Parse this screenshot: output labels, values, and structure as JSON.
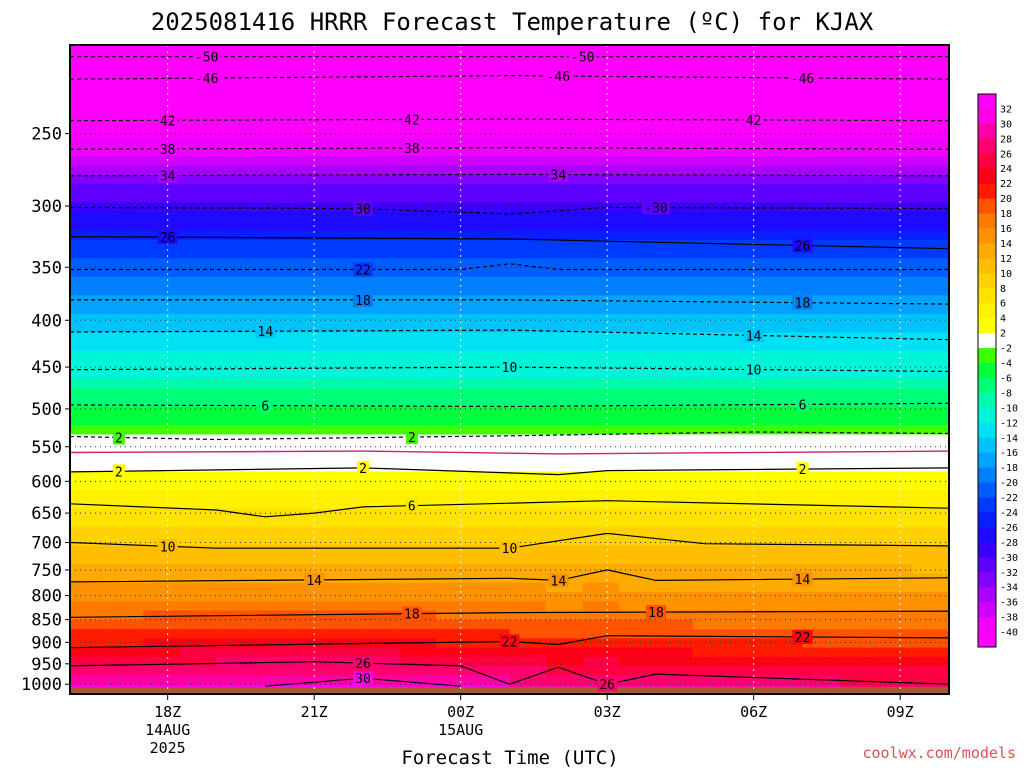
{
  "chart_data": {
    "type": "heatmap",
    "title": "2025081416 HRRR Forecast Temperature (ºC) for KJAX",
    "xlabel": "Forecast Time (UTC)",
    "ylabel": "",
    "x_unit": "hours since 2025-08-14 16Z",
    "xlim": [
      0,
      18
    ],
    "x_ticks": [
      {
        "x": 2,
        "label": "18Z",
        "sub1": "14AUG",
        "sub2": "2025"
      },
      {
        "x": 5,
        "label": "21Z",
        "sub1": "",
        "sub2": ""
      },
      {
        "x": 8,
        "label": "00Z",
        "sub1": "15AUG",
        "sub2": ""
      },
      {
        "x": 11,
        "label": "03Z",
        "sub1": "",
        "sub2": ""
      },
      {
        "x": 14,
        "label": "06Z",
        "sub1": "",
        "sub2": ""
      },
      {
        "x": 17,
        "label": "09Z",
        "sub1": "",
        "sub2": ""
      }
    ],
    "y_scale": "log",
    "y_reversed": true,
    "ylim": [
      1025,
      200
    ],
    "y_ticks": [
      {
        "p": 250,
        "label": "250"
      },
      {
        "p": 300,
        "label": "300"
      },
      {
        "p": 350,
        "label": "350"
      },
      {
        "p": 400,
        "label": "400"
      },
      {
        "p": 450,
        "label": "450"
      },
      {
        "p": 500,
        "label": "500"
      },
      {
        "p": 550,
        "label": "550"
      },
      {
        "p": 600,
        "label": "600"
      },
      {
        "p": 650,
        "label": "650"
      },
      {
        "p": 700,
        "label": "700"
      },
      {
        "p": 750,
        "label": "750"
      },
      {
        "p": 800,
        "label": "800"
      },
      {
        "p": 850,
        "label": "850"
      },
      {
        "p": 900,
        "label": "900"
      },
      {
        "p": 950,
        "label": "950"
      },
      {
        "p": 1000,
        "label": "1000"
      }
    ],
    "levels_hpa": [
      1005,
      1000,
      950,
      900,
      850,
      800,
      750,
      700,
      650,
      600,
      550,
      500,
      450,
      400,
      350,
      300,
      250,
      200
    ],
    "temperature_profile_c": [
      30,
      28.5,
      25,
      21,
      18,
      15,
      12.5,
      9.5,
      6.5,
      3,
      0,
      -6,
      -11,
      -15,
      -21,
      -29,
      -41,
      -53
    ],
    "times_h": [
      0,
      2,
      4,
      6,
      8,
      9,
      10,
      11,
      12,
      14,
      16,
      18
    ],
    "surface_diurnal_offsets_c": [
      0.5,
      1.5,
      2,
      2,
      1,
      0.5,
      -1,
      -0.5,
      -1,
      -1.5,
      -2,
      -2.5
    ],
    "contours": [
      {
        "value": -50,
        "style": "dashed",
        "x": [
          0,
          9,
          18
        ],
        "p": [
          206,
          206,
          206
        ],
        "labels": [
          {
            "x": 2.8,
            "text": "-50"
          },
          {
            "x": 10.5,
            "text": "-50"
          }
        ]
      },
      {
        "value": -46,
        "style": "dashed",
        "x": [
          0,
          9,
          18
        ],
        "p": [
          218,
          216,
          218
        ],
        "labels": [
          {
            "x": 2.8,
            "text": "-46"
          },
          {
            "x": 10,
            "text": "-46"
          },
          {
            "x": 15,
            "text": "-46"
          }
        ]
      },
      {
        "value": -42,
        "style": "dashed",
        "x": [
          0,
          9,
          18
        ],
        "p": [
          242,
          241,
          242
        ],
        "labels": [
          {
            "x": 2,
            "text": "42"
          },
          {
            "x": 7,
            "text": "42"
          },
          {
            "x": 14,
            "text": "42"
          }
        ]
      },
      {
        "value": -38,
        "style": "dashed",
        "x": [
          0,
          9,
          18
        ],
        "p": [
          260,
          259,
          260
        ],
        "labels": [
          {
            "x": 2,
            "text": "38"
          },
          {
            "x": 7,
            "text": "38"
          }
        ]
      },
      {
        "value": -34,
        "style": "dashed",
        "x": [
          0,
          9,
          18
        ],
        "p": [
          278,
          277,
          278
        ],
        "labels": [
          {
            "x": 2,
            "text": "34"
          },
          {
            "x": 10,
            "text": "34"
          }
        ]
      },
      {
        "value": -30,
        "style": "dashed",
        "x": [
          0,
          6,
          9,
          11,
          18
        ],
        "p": [
          301,
          302,
          306,
          301,
          302
        ],
        "labels": [
          {
            "x": 6,
            "text": "30"
          },
          {
            "x": 12,
            "text": "-30"
          }
        ]
      },
      {
        "value": -26,
        "style": "solid",
        "x": [
          0,
          9,
          18
        ],
        "p": [
          324,
          326,
          334
        ],
        "labels": [
          {
            "x": 2,
            "text": "26"
          },
          {
            "x": 15,
            "text": "26"
          }
        ]
      },
      {
        "value": -22,
        "style": "dashed",
        "x": [
          0,
          8,
          9,
          10,
          18
        ],
        "p": [
          352,
          352,
          347,
          352,
          352
        ],
        "labels": [
          {
            "x": 6,
            "text": "22"
          }
        ]
      },
      {
        "value": -18,
        "style": "dashed",
        "x": [
          0,
          9,
          18
        ],
        "p": [
          380,
          380,
          384
        ],
        "labels": [
          {
            "x": 6,
            "text": "18"
          },
          {
            "x": 15,
            "text": "18"
          }
        ]
      },
      {
        "value": -14,
        "style": "dashed",
        "x": [
          0,
          9,
          18
        ],
        "p": [
          412,
          410,
          420
        ],
        "labels": [
          {
            "x": 4,
            "text": "14"
          },
          {
            "x": 14,
            "text": "14"
          }
        ]
      },
      {
        "value": -10,
        "style": "dashed",
        "x": [
          0,
          9,
          18
        ],
        "p": [
          453,
          450,
          455
        ],
        "labels": [
          {
            "x": 9,
            "text": "10"
          },
          {
            "x": 14,
            "text": "10"
          }
        ]
      },
      {
        "value": -6,
        "style": "dashed",
        "x": [
          0,
          9,
          18
        ],
        "p": [
          495,
          497,
          493
        ],
        "labels": [
          {
            "x": 4,
            "text": "6"
          },
          {
            "x": 15,
            "text": "6"
          }
        ]
      },
      {
        "value": -2,
        "style": "dashed",
        "x": [
          0,
          3,
          9,
          14,
          18
        ],
        "p": [
          536,
          540,
          535,
          530,
          532
        ],
        "labels": [
          {
            "x": 1,
            "text": "2"
          },
          {
            "x": 7,
            "text": "2"
          }
        ]
      },
      {
        "value": 0,
        "style": "magenta",
        "x": [
          0,
          6,
          10,
          18
        ],
        "p": [
          558,
          556,
          560,
          556
        ],
        "labels": []
      },
      {
        "value": 2,
        "style": "solid",
        "x": [
          0,
          6,
          10,
          11,
          18
        ],
        "p": [
          586,
          580,
          590,
          584,
          580
        ],
        "labels": [
          {
            "x": 1,
            "text": "2"
          },
          {
            "x": 6,
            "text": "2"
          },
          {
            "x": 15,
            "text": "2"
          }
        ]
      },
      {
        "value": 6,
        "style": "solid",
        "x": [
          0,
          3,
          4,
          5,
          6,
          11,
          18
        ],
        "p": [
          635,
          645,
          656,
          650,
          640,
          630,
          642
        ],
        "labels": [
          {
            "x": 7,
            "text": "6"
          }
        ]
      },
      {
        "value": 10,
        "style": "solid",
        "x": [
          0,
          3,
          9,
          11,
          13,
          18
        ],
        "p": [
          700,
          710,
          710,
          684,
          702,
          706
        ],
        "labels": [
          {
            "x": 2,
            "text": "10"
          },
          {
            "x": 9,
            "text": "10"
          }
        ]
      },
      {
        "value": 14,
        "style": "solid",
        "x": [
          0,
          9,
          10,
          11,
          12,
          18
        ],
        "p": [
          773,
          766,
          770,
          750,
          770,
          765
        ],
        "labels": [
          {
            "x": 5,
            "text": "14"
          },
          {
            "x": 10,
            "text": "14"
          },
          {
            "x": 15,
            "text": "14"
          }
        ]
      },
      {
        "value": 18,
        "style": "solid",
        "x": [
          0,
          9,
          18
        ],
        "p": [
          845,
          835,
          832
        ],
        "labels": [
          {
            "x": 7,
            "text": "18"
          },
          {
            "x": 12,
            "text": "18"
          }
        ]
      },
      {
        "value": 22,
        "style": "solid",
        "x": [
          0,
          9,
          10,
          11,
          18
        ],
        "p": [
          912,
          898,
          905,
          885,
          890
        ],
        "labels": [
          {
            "x": 9,
            "text": "22"
          },
          {
            "x": 15,
            "text": "22"
          }
        ]
      },
      {
        "value": 26,
        "style": "solid",
        "x": [
          0,
          5,
          8,
          9,
          10,
          11,
          12,
          18
        ],
        "p": [
          955,
          945,
          955,
          1000,
          958,
          1000,
          975,
          1000
        ],
        "labels": [
          {
            "x": 6,
            "text": "26"
          },
          {
            "x": 11,
            "text": "26"
          }
        ]
      },
      {
        "value": 30,
        "style": "solid",
        "x": [
          4,
          6,
          8
        ],
        "p": [
          1005,
          985,
          1005
        ],
        "labels": [
          {
            "x": 6,
            "text": "30"
          }
        ]
      }
    ],
    "colorbar": {
      "levels": [
        -40,
        -38,
        -36,
        -34,
        -32,
        -30,
        -28,
        -26,
        -24,
        -22,
        -20,
        -18,
        -16,
        -14,
        -12,
        -10,
        -8,
        -6,
        -4,
        -2,
        2,
        4,
        6,
        8,
        10,
        12,
        14,
        16,
        18,
        20,
        22,
        24,
        26,
        28,
        30,
        32
      ],
      "labels": [
        "32",
        "30",
        "28",
        "26",
        "24",
        "22",
        "20",
        "18",
        "16",
        "14",
        "12",
        "10",
        "8",
        "6",
        "4",
        "2",
        "-2",
        "-4",
        "-6",
        "-8",
        "-10",
        "-12",
        "-14",
        "-16",
        "-18",
        "-20",
        "-22",
        "-24",
        "-26",
        "-28",
        "-30",
        "-32",
        "-34",
        "-36",
        "-38",
        "-40"
      ]
    },
    "grid": true,
    "legend": "colorbar right"
  },
  "credit": "coolwx.com/models"
}
